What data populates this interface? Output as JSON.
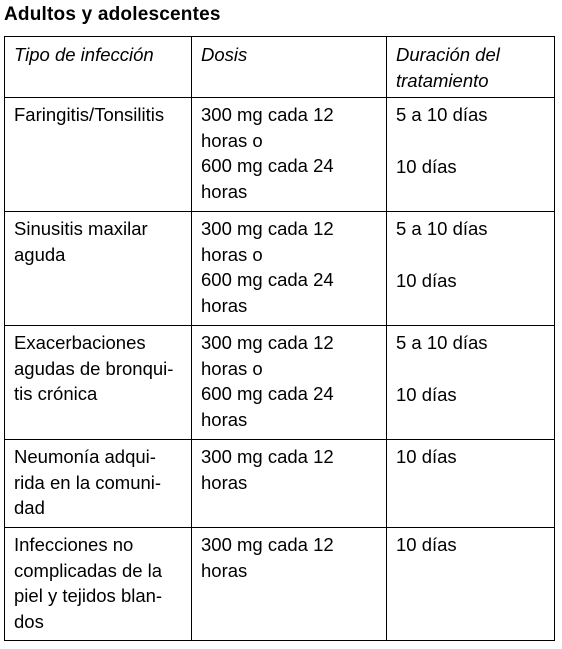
{
  "title": "Adultos y adolescentes",
  "headers": {
    "infection": "Tipo de infección",
    "dose": "Dosis",
    "duration_line1": "Duración del",
    "duration_line2": "tratamiento"
  },
  "rows": [
    {
      "infection": [
        "Faringitis/Tonsilitis"
      ],
      "dose": [
        "300 mg cada 12",
        "horas o",
        "600 mg cada 24",
        "horas"
      ],
      "duration_a": "5 a 10 días",
      "duration_b": "10 días"
    },
    {
      "infection": [
        "Sinusitis maxilar",
        "aguda"
      ],
      "dose": [
        "300 mg cada 12",
        "horas o",
        "600 mg cada 24",
        "horas"
      ],
      "duration_a": "5 a 10 días",
      "duration_b": "10 días"
    },
    {
      "infection": [
        "Exacerbaciones",
        "agudas de bronqui-",
        "tis crónica"
      ],
      "dose": [
        "300 mg cada 12",
        "horas o",
        "600 mg cada 24",
        "horas"
      ],
      "duration_a": "5 a 10 días",
      "duration_b": "10 días"
    },
    {
      "infection": [
        "Neumonía adqui-",
        "rida en la comuni-",
        "dad"
      ],
      "dose": [
        "300 mg cada 12",
        "horas"
      ],
      "duration_a": "10 días"
    },
    {
      "infection": [
        "Infecciones no",
        "complicadas de la",
        "piel y tejidos blan-",
        "dos"
      ],
      "dose": [
        "300 mg cada 12",
        "horas"
      ],
      "duration_a": "10 días"
    }
  ]
}
